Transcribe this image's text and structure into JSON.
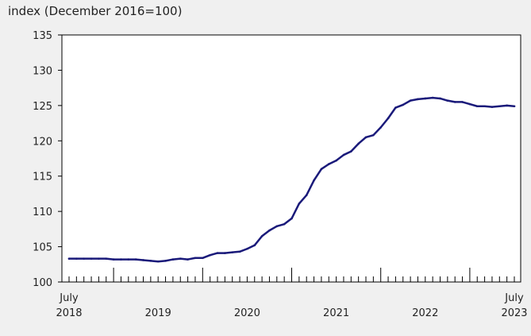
{
  "chart_data": {
    "type": "line",
    "ylabel": "index (December 2016=100)",
    "ylim": [
      100,
      135
    ],
    "yticks": [
      100,
      105,
      110,
      115,
      120,
      125,
      130,
      135
    ],
    "x_start": "2018-07",
    "x_end": "2023-07",
    "x_tick_labels": [
      {
        "date": "2018-07",
        "top": "July",
        "bottom": "2018"
      },
      {
        "date": "2019-07",
        "top": "",
        "bottom": "2019"
      },
      {
        "date": "2020-07",
        "top": "",
        "bottom": "2020"
      },
      {
        "date": "2021-07",
        "top": "",
        "bottom": "2021"
      },
      {
        "date": "2022-07",
        "top": "",
        "bottom": "2022"
      },
      {
        "date": "2023-07",
        "top": "July",
        "bottom": "2023"
      }
    ],
    "grid": false,
    "legend": "none",
    "line_color": "#1a1a7a",
    "series": [
      {
        "x": [
          "2018-07",
          "2018-08",
          "2018-09",
          "2018-10",
          "2018-11",
          "2018-12",
          "2019-01",
          "2019-02",
          "2019-03",
          "2019-04",
          "2019-05",
          "2019-06",
          "2019-07",
          "2019-08",
          "2019-09",
          "2019-10",
          "2019-11",
          "2019-12",
          "2020-01",
          "2020-02",
          "2020-03",
          "2020-04",
          "2020-05",
          "2020-06",
          "2020-07",
          "2020-08",
          "2020-09",
          "2020-10",
          "2020-11",
          "2020-12",
          "2021-01",
          "2021-02",
          "2021-03",
          "2021-04",
          "2021-05",
          "2021-06",
          "2021-07",
          "2021-08",
          "2021-09",
          "2021-10",
          "2021-11",
          "2021-12",
          "2022-01",
          "2022-02",
          "2022-03",
          "2022-04",
          "2022-05",
          "2022-06",
          "2022-07",
          "2022-08",
          "2022-09",
          "2022-10",
          "2022-11",
          "2022-12",
          "2023-01",
          "2023-02",
          "2023-03",
          "2023-04",
          "2023-05",
          "2023-06",
          "2023-07"
        ],
        "values": [
          103.3,
          103.3,
          103.3,
          103.3,
          103.3,
          103.3,
          103.2,
          103.2,
          103.2,
          103.2,
          103.1,
          103.0,
          102.9,
          103.0,
          103.2,
          103.3,
          103.2,
          103.4,
          103.4,
          103.8,
          104.1,
          104.1,
          104.2,
          104.3,
          104.7,
          105.2,
          106.5,
          107.3,
          107.9,
          108.2,
          109.0,
          111.1,
          112.3,
          114.4,
          116.0,
          116.7,
          117.2,
          118.0,
          118.5,
          119.6,
          120.5,
          120.8,
          121.9,
          123.2,
          124.7,
          125.1,
          125.7,
          125.9,
          126.0,
          126.1,
          126.0,
          125.7,
          125.5,
          125.5,
          125.2,
          124.9,
          124.9,
          124.8,
          124.9,
          125.0,
          124.9
        ]
      }
    ]
  }
}
